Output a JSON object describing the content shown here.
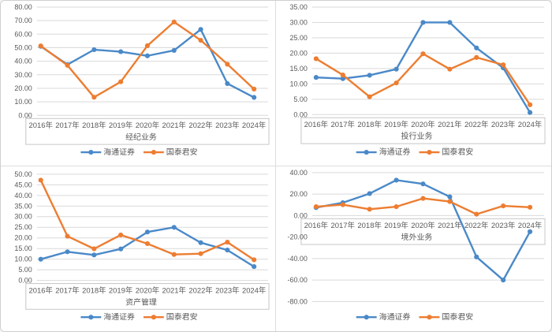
{
  "page": {
    "background": "#ffffff",
    "outer_border_color": "#cfcfcf",
    "divider_color": "#dcdcdc",
    "text_color": "#595959",
    "gridline_color": "#d9d9d9",
    "axis_box_border_color": "#c6c6c6"
  },
  "palette": {
    "haitong_blue": "#4A89C8",
    "guotai_orange": "#ED7D31"
  },
  "chart_data": [
    {
      "type": "line",
      "title": "经纪业务",
      "categories": [
        "2016年",
        "2017年",
        "2018年",
        "2019年",
        "2020年",
        "2021年",
        "2022年",
        "2023年",
        "2024年"
      ],
      "series": [
        {
          "name": "海通证券",
          "color": "#4A89C8",
          "values": [
            51.0,
            37.5,
            48.5,
            47.0,
            44.0,
            48.0,
            63.5,
            23.5,
            13.3
          ]
        },
        {
          "name": "国泰君安",
          "color": "#ED7D31",
          "values": [
            51.3,
            37.0,
            13.4,
            24.8,
            51.5,
            69.0,
            55.5,
            37.8,
            19.4
          ]
        }
      ],
      "ylim": [
        0,
        80
      ],
      "ytick_step": 10,
      "yticks": [
        "80.00",
        "70.00",
        "60.00",
        "50.00",
        "40.00",
        "30.00",
        "20.00",
        "10.00",
        "0.00"
      ],
      "legend": [
        "海通证券",
        "国泰君安"
      ],
      "grid": true,
      "legend_position": "bottom"
    },
    {
      "type": "line",
      "title": "投行业务",
      "categories": [
        "2016年",
        "2017年",
        "2018年",
        "2019年",
        "2020年",
        "2021年",
        "2022年",
        "2023年",
        "2024年"
      ],
      "series": [
        {
          "name": "海通证券",
          "color": "#4A89C8",
          "values": [
            12.1,
            11.7,
            12.8,
            14.8,
            30.0,
            30.0,
            21.7,
            15.2,
            0.7
          ]
        },
        {
          "name": "国泰君安",
          "color": "#ED7D31",
          "values": [
            18.2,
            12.9,
            5.8,
            10.3,
            19.8,
            14.8,
            18.6,
            16.2,
            3.2
          ]
        }
      ],
      "ylim": [
        0,
        35
      ],
      "ytick_step": 5,
      "yticks": [
        "35.00",
        "30.00",
        "25.00",
        "20.00",
        "15.00",
        "10.00",
        "5.00",
        "0.00"
      ],
      "legend": [
        "海通证券",
        "国泰君安"
      ],
      "grid": true,
      "legend_position": "bottom"
    },
    {
      "type": "line",
      "title": "资产管理",
      "categories": [
        "2016年",
        "2017年",
        "2018年",
        "2019年",
        "2020年",
        "2021年",
        "2022年",
        "2023年",
        "2024年"
      ],
      "series": [
        {
          "name": "海通证券",
          "color": "#4A89C8",
          "values": [
            10.0,
            13.5,
            12.0,
            14.8,
            22.8,
            25.0,
            17.8,
            14.3,
            6.5
          ]
        },
        {
          "name": "国泰君安",
          "color": "#ED7D31",
          "values": [
            47.2,
            20.8,
            14.9,
            21.4,
            17.3,
            12.2,
            12.6,
            18.0,
            9.7
          ]
        }
      ],
      "ylim": [
        0,
        50
      ],
      "ytick_step": 5,
      "yticks": [
        "50.00",
        "45.00",
        "40.00",
        "35.00",
        "30.00",
        "25.00",
        "20.00",
        "15.00",
        "10.00",
        "5.00",
        "0.00"
      ],
      "legend": [
        "海通证券",
        "国泰君安"
      ],
      "grid": true,
      "legend_position": "bottom"
    },
    {
      "type": "line",
      "title": "境外业务",
      "categories": [
        "2016年",
        "2017年",
        "2018年",
        "2019年",
        "2020年",
        "2021年",
        "2022年",
        "2023年",
        "2024年"
      ],
      "series": [
        {
          "name": "海通证券",
          "color": "#4A89C8",
          "values": [
            7.5,
            12.0,
            20.5,
            33.0,
            29.5,
            17.5,
            -38.5,
            -60.0,
            -15.0
          ]
        },
        {
          "name": "国泰君安",
          "color": "#ED7D31",
          "values": [
            8.3,
            10.2,
            6.0,
            8.3,
            16.0,
            13.1,
            1.3,
            9.0,
            7.8
          ]
        }
      ],
      "ylim": [
        -80,
        40
      ],
      "ytick_step": 20,
      "yticks": [
        "40.00",
        "20.00",
        "0.00",
        "-20.00",
        "-40.00",
        "-60.00",
        "-80.00"
      ],
      "legend": [
        "海通证券",
        "国泰君安"
      ],
      "grid": true,
      "legend_position": "bottom"
    }
  ]
}
